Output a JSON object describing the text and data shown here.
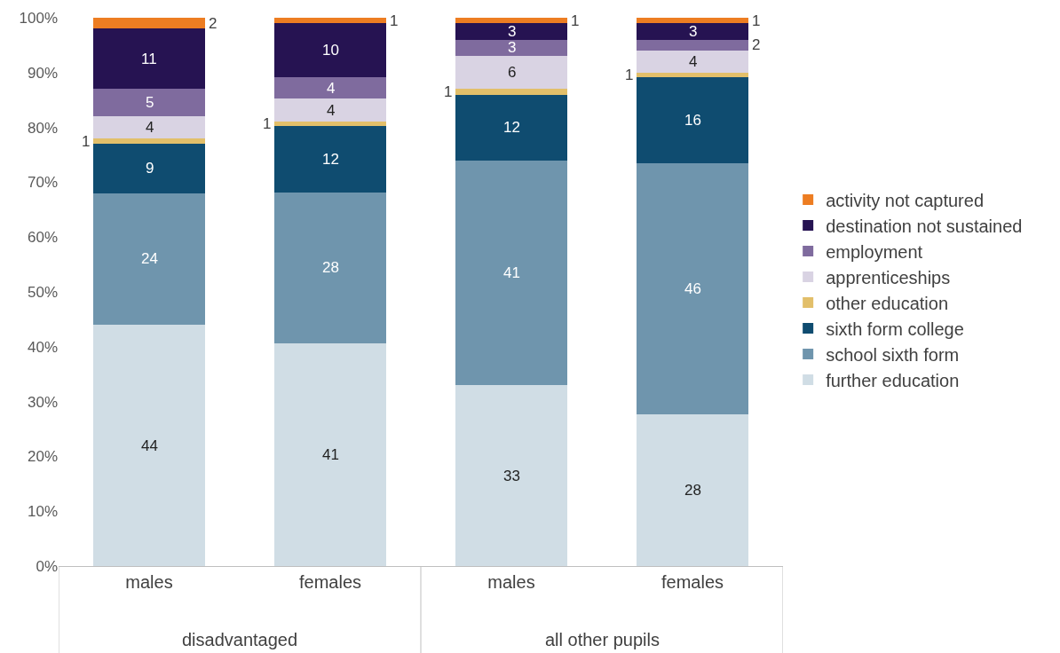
{
  "chart_data": {
    "type": "bar",
    "stacked": true,
    "categories": [
      "males",
      "females",
      "males",
      "females"
    ],
    "annotations": [
      "disadvantaged",
      "all other pupils"
    ],
    "series": [
      {
        "name": "further education",
        "color": "#d0dde5",
        "values": [
          44,
          40.6,
          33,
          27.6
        ],
        "value_labels": [
          "44",
          "41",
          "33",
          "28"
        ]
      },
      {
        "name": "school sixth form",
        "color": "#6f95ad",
        "values": [
          24,
          27.6,
          41,
          45.8
        ],
        "value_labels": [
          "24",
          "28",
          "41",
          "46"
        ]
      },
      {
        "name": "sixth form college",
        "color": "#0f4c70",
        "values": [
          9,
          12.1,
          12,
          15.8
        ],
        "value_labels": [
          "9",
          "12",
          "12",
          "16"
        ]
      },
      {
        "name": "other education",
        "color": "#e2bf6a",
        "values": [
          1,
          0.8,
          1,
          0.8
        ],
        "value_labels": [
          "1",
          "1",
          "1",
          "1"
        ]
      },
      {
        "name": "apprenticeships",
        "color": "#d9d3e3",
        "values": [
          4,
          4.1,
          6,
          4
        ],
        "value_labels": [
          "4",
          "4",
          "6",
          "4"
        ]
      },
      {
        "name": "employment",
        "color": "#7f6b9e",
        "values": [
          5,
          3.9,
          3,
          2
        ],
        "value_labels": [
          "5",
          "4",
          "3",
          "2"
        ]
      },
      {
        "name": "destination not sustained",
        "color": "#261352",
        "values": [
          11,
          9.9,
          3,
          3
        ],
        "value_labels": [
          "11",
          "10",
          "3",
          "3"
        ]
      },
      {
        "name": "activity not captured",
        "color": "#ed7d22",
        "values": [
          2,
          1,
          1,
          1
        ],
        "value_labels": [
          "2",
          "1",
          "1",
          "1"
        ]
      }
    ],
    "ylim": [
      0,
      100
    ],
    "yticks": [
      {
        "value": 0,
        "label": "0%"
      },
      {
        "value": 10,
        "label": "10%"
      },
      {
        "value": 20,
        "label": "20%"
      },
      {
        "value": 30,
        "label": "30%"
      },
      {
        "value": 40,
        "label": "40%"
      },
      {
        "value": 50,
        "label": "50%"
      },
      {
        "value": 60,
        "label": "60%"
      },
      {
        "value": 70,
        "label": "70%"
      },
      {
        "value": 80,
        "label": "80%"
      },
      {
        "value": 90,
        "label": "90%"
      },
      {
        "value": 100,
        "label": "100%"
      }
    ],
    "grid": false,
    "legend": "right"
  }
}
